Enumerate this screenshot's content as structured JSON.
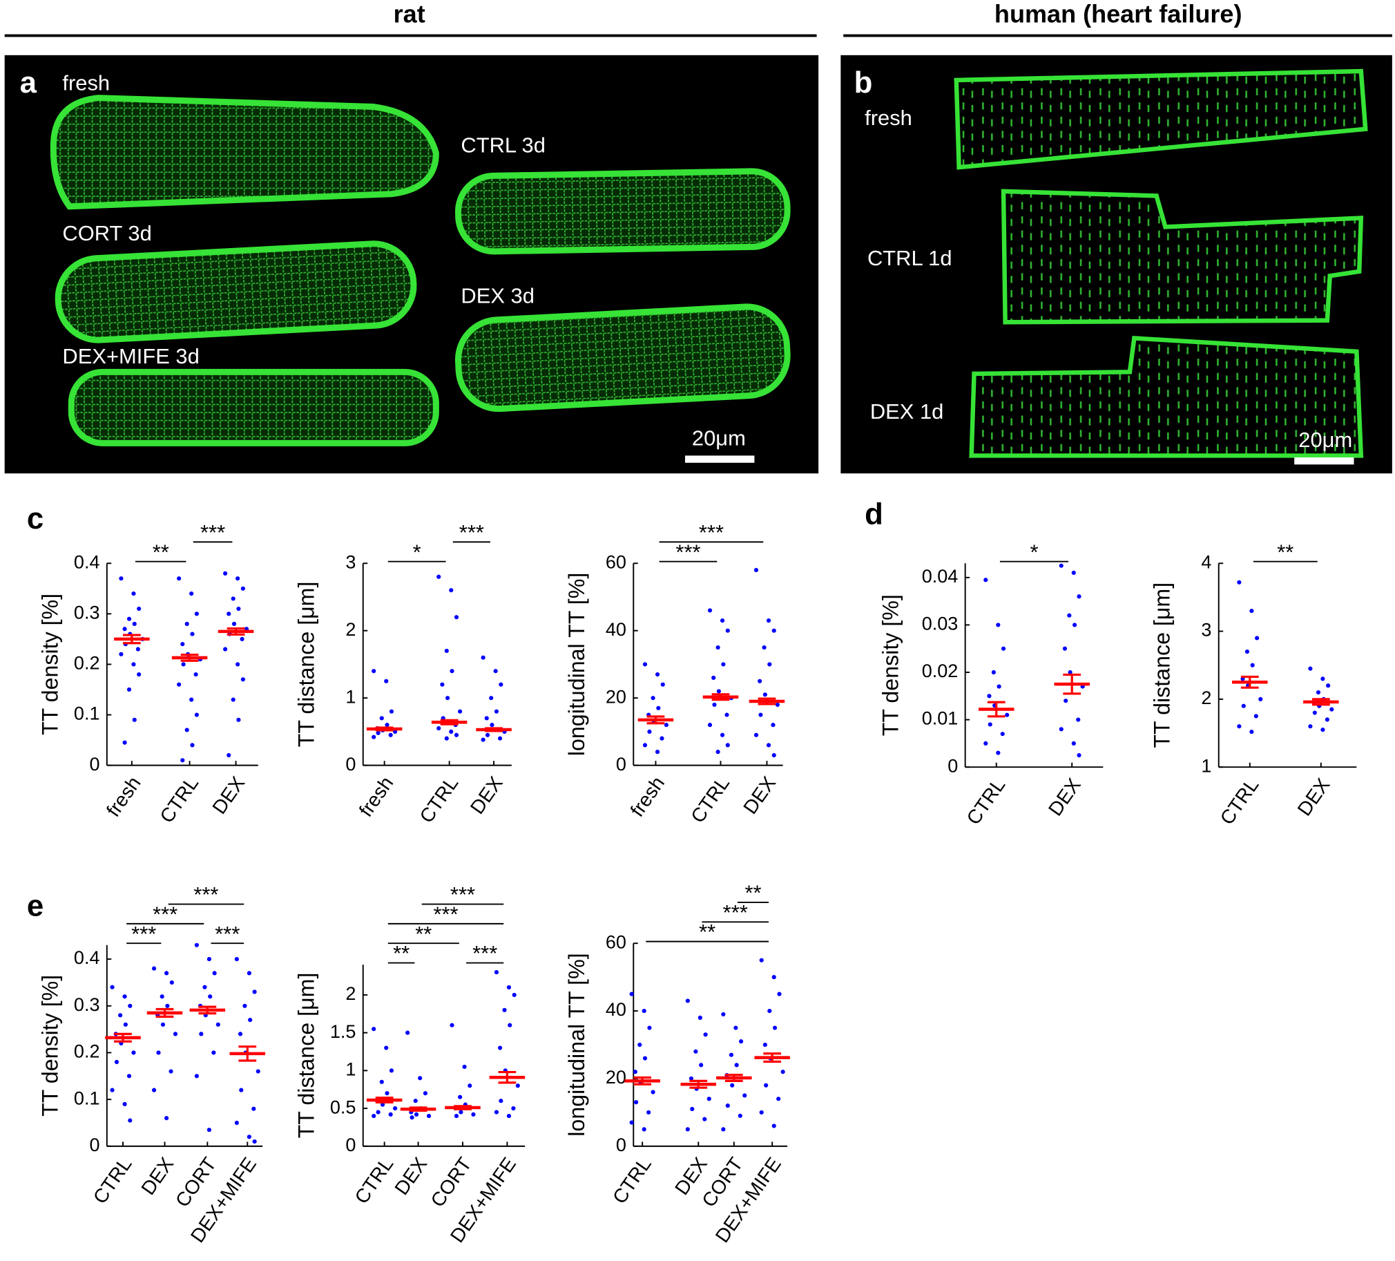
{
  "headers": {
    "rat": "rat",
    "human": "human (heart failure)"
  },
  "images": [
    {
      "label": "a",
      "annotations": [
        "fresh",
        "CTRL 3d",
        "CORT 3d",
        "DEX 3d",
        "DEX+MIFE 3d"
      ],
      "scale_bar": "20μm"
    },
    {
      "label": "b",
      "annotations": [
        "fresh",
        "CTRL 1d",
        "DEX 1d"
      ],
      "scale_bar": "20μm"
    }
  ],
  "figure_labels": [
    "c",
    "d",
    "e"
  ],
  "chart_data": [
    {
      "type": "strip",
      "ylabel": "TT density [%]",
      "categories": [
        "fresh",
        "CTRL",
        "DEX"
      ],
      "ylim": [
        0,
        0.4
      ],
      "yticks": [
        0,
        0.1,
        0.2,
        0.3,
        0.4
      ],
      "dot_color": "#0000ff",
      "mean_color": "#ff0000",
      "series": [
        {
          "values": [
            0.37,
            0.34,
            0.31,
            0.29,
            0.28,
            0.27,
            0.26,
            0.25,
            0.24,
            0.23,
            0.22,
            0.2,
            0.18,
            0.15,
            0.09,
            0.045
          ],
          "mean": 0.25,
          "sem": 0.008
        },
        {
          "values": [
            0.37,
            0.34,
            0.3,
            0.28,
            0.26,
            0.24,
            0.22,
            0.21,
            0.2,
            0.18,
            0.16,
            0.13,
            0.1,
            0.07,
            0.04,
            0.01
          ],
          "mean": 0.213,
          "sem": 0.006
        },
        {
          "values": [
            0.38,
            0.37,
            0.35,
            0.33,
            0.31,
            0.3,
            0.28,
            0.27,
            0.26,
            0.25,
            0.23,
            0.2,
            0.17,
            0.13,
            0.09,
            0.02
          ],
          "mean": 0.265,
          "sem": 0.006
        }
      ],
      "comparisons": [
        {
          "pair": [
            "fresh",
            "CTRL"
          ],
          "label": "**"
        },
        {
          "pair": [
            "CTRL",
            "DEX"
          ],
          "label": "***"
        }
      ]
    },
    {
      "type": "strip",
      "ylabel": "TT distance [μm]",
      "categories": [
        "fresh",
        "CTRL",
        "DEX"
      ],
      "ylim": [
        0,
        3
      ],
      "yticks": [
        0,
        1,
        2,
        3
      ],
      "dot_color": "#0000ff",
      "mean_color": "#ff0000",
      "series": [
        {
          "values": [
            1.4,
            1.25,
            0.8,
            0.7,
            0.6,
            0.55,
            0.52,
            0.5,
            0.48,
            0.45,
            0.42
          ],
          "mean": 0.54,
          "sem": 0.02
        },
        {
          "values": [
            2.8,
            2.6,
            2.2,
            1.7,
            1.4,
            1.2,
            1.0,
            0.8,
            0.7,
            0.6,
            0.55,
            0.5,
            0.45,
            0.4
          ],
          "mean": 0.64,
          "sem": 0.03
        },
        {
          "values": [
            1.6,
            1.4,
            1.2,
            1.0,
            0.8,
            0.7,
            0.6,
            0.5,
            0.45,
            0.4,
            0.38
          ],
          "mean": 0.53,
          "sem": 0.02
        }
      ],
      "comparisons": [
        {
          "pair": [
            "fresh",
            "CTRL"
          ],
          "label": "*"
        },
        {
          "pair": [
            "CTRL",
            "DEX"
          ],
          "label": "***"
        }
      ]
    },
    {
      "type": "strip",
      "ylabel": "longitudinal TT [%]",
      "categories": [
        "fresh",
        "CTRL",
        "DEX"
      ],
      "ylim": [
        0,
        60
      ],
      "yticks": [
        0,
        20,
        40,
        60
      ],
      "dot_color": "#0000ff",
      "mean_color": "#ff0000",
      "series": [
        {
          "values": [
            30,
            27,
            24,
            20,
            17,
            15,
            13,
            12,
            10,
            8,
            6,
            4
          ],
          "mean": 13.5,
          "sem": 1
        },
        {
          "values": [
            46,
            43,
            40,
            35,
            30,
            26,
            22,
            20,
            18,
            15,
            12,
            9,
            6,
            4
          ],
          "mean": 20.3,
          "sem": 0.8
        },
        {
          "values": [
            58,
            43,
            40,
            35,
            30,
            25,
            21,
            18,
            15,
            12,
            9,
            6,
            3
          ],
          "mean": 19,
          "sem": 0.8
        }
      ],
      "comparisons": [
        {
          "pair": [
            "fresh",
            "CTRL"
          ],
          "label": "***"
        },
        {
          "pair": [
            "fresh",
            "DEX"
          ],
          "label": "***"
        }
      ]
    },
    {
      "type": "strip",
      "ylabel": "TT density [%]",
      "categories": [
        "CTRL",
        "DEX"
      ],
      "ylim": [
        0,
        0.043
      ],
      "yticks": [
        0,
        0.01,
        0.02,
        0.03,
        0.04
      ],
      "dot_color": "#0000ff",
      "mean_color": "#ff0000",
      "series": [
        {
          "values": [
            0.0395,
            0.03,
            0.025,
            0.02,
            0.017,
            0.015,
            0.013,
            0.011,
            0.009,
            0.007,
            0.005,
            0.003
          ],
          "mean": 0.0122,
          "sem": 0.0015
        },
        {
          "values": [
            0.0425,
            0.041,
            0.036,
            0.032,
            0.03,
            0.025,
            0.02,
            0.017,
            0.014,
            0.01,
            0.008,
            0.005,
            0.0025
          ],
          "mean": 0.0175,
          "sem": 0.002
        }
      ],
      "comparisons": [
        {
          "pair": [
            "CTRL",
            "DEX"
          ],
          "label": "*"
        }
      ]
    },
    {
      "type": "strip",
      "ylabel": "TT distance [μm]",
      "categories": [
        "CTRL",
        "DEX"
      ],
      "ylim": [
        1,
        4
      ],
      "yticks": [
        1,
        2,
        3,
        4
      ],
      "dot_color": "#0000ff",
      "mean_color": "#ff0000",
      "series": [
        {
          "values": [
            3.72,
            3.3,
            2.9,
            2.7,
            2.5,
            2.3,
            2.2,
            2.0,
            1.9,
            1.75,
            1.6,
            1.52
          ],
          "mean": 2.25,
          "sem": 0.08
        },
        {
          "values": [
            2.45,
            2.3,
            2.2,
            2.1,
            2.0,
            1.95,
            1.9,
            1.85,
            1.8,
            1.7,
            1.6,
            1.55
          ],
          "mean": 1.96,
          "sem": 0.04
        }
      ],
      "comparisons": [
        {
          "pair": [
            "CTRL",
            "DEX"
          ],
          "label": "**"
        }
      ]
    },
    {
      "type": "strip",
      "ylabel": "TT density [%]",
      "categories": [
        "CTRL",
        "DEX",
        "CORT",
        "DEX+MIFE"
      ],
      "ylim": [
        0,
        0.43
      ],
      "yticks": [
        0,
        0.1,
        0.2,
        0.3,
        0.4
      ],
      "dot_color": "#0000ff",
      "mean_color": "#ff0000",
      "series": [
        {
          "values": [
            0.34,
            0.32,
            0.3,
            0.28,
            0.26,
            0.24,
            0.22,
            0.2,
            0.18,
            0.15,
            0.12,
            0.09,
            0.055
          ],
          "mean": 0.232,
          "sem": 0.008
        },
        {
          "values": [
            0.38,
            0.37,
            0.35,
            0.32,
            0.3,
            0.28,
            0.26,
            0.24,
            0.2,
            0.16,
            0.12,
            0.06
          ],
          "mean": 0.285,
          "sem": 0.008
        },
        {
          "values": [
            0.43,
            0.4,
            0.37,
            0.34,
            0.32,
            0.3,
            0.28,
            0.26,
            0.24,
            0.2,
            0.15,
            0.035
          ],
          "mean": 0.291,
          "sem": 0.007
        },
        {
          "values": [
            0.4,
            0.37,
            0.33,
            0.3,
            0.27,
            0.24,
            0.2,
            0.16,
            0.12,
            0.08,
            0.05,
            0.02,
            0.01
          ],
          "mean": 0.198,
          "sem": 0.015
        }
      ],
      "comparisons": [
        {
          "pair": [
            "CTRL",
            "DEX"
          ],
          "label": "***"
        },
        {
          "pair": [
            "CTRL",
            "CORT"
          ],
          "label": "***"
        },
        {
          "pair": [
            "CORT",
            "DEX+MIFE"
          ],
          "label": "***"
        },
        {
          "pair": [
            "DEX",
            "DEX+MIFE"
          ],
          "label": "***"
        }
      ]
    },
    {
      "type": "strip",
      "ylabel": "TT distance [μm]",
      "categories": [
        "CTRL",
        "DEX",
        "CORT",
        "DEX+MIFE"
      ],
      "ylim": [
        0,
        2.4
      ],
      "yticks": [
        0,
        0.5,
        1,
        1.5,
        2
      ],
      "dot_color": "#0000ff",
      "mean_color": "#ff0000",
      "series": [
        {
          "values": [
            1.55,
            1.3,
            1.0,
            0.85,
            0.7,
            0.6,
            0.55,
            0.5,
            0.45,
            0.42,
            0.4
          ],
          "mean": 0.61,
          "sem": 0.03
        },
        {
          "values": [
            1.5,
            0.9,
            0.7,
            0.6,
            0.5,
            0.45,
            0.42,
            0.4,
            0.38
          ],
          "mean": 0.49,
          "sem": 0.02
        },
        {
          "values": [
            1.6,
            1.05,
            0.8,
            0.65,
            0.55,
            0.5,
            0.45,
            0.42,
            0.4
          ],
          "mean": 0.51,
          "sem": 0.02
        },
        {
          "values": [
            2.3,
            2.1,
            2.0,
            1.8,
            1.6,
            1.3,
            1.0,
            0.8,
            0.6,
            0.5,
            0.45,
            0.4
          ],
          "mean": 0.91,
          "sem": 0.07
        }
      ],
      "comparisons": [
        {
          "pair": [
            "CTRL",
            "DEX"
          ],
          "label": "**"
        },
        {
          "pair": [
            "CTRL",
            "CORT"
          ],
          "label": "**"
        },
        {
          "pair": [
            "CTRL",
            "DEX+MIFE"
          ],
          "label": "***"
        },
        {
          "pair": [
            "DEX",
            "DEX+MIFE"
          ],
          "label": "***"
        },
        {
          "pair": [
            "CORT",
            "DEX+MIFE"
          ],
          "label": "***"
        }
      ]
    },
    {
      "type": "strip",
      "ylabel": "longitudinal TT [%]",
      "categories": [
        "CTRL",
        "DEX",
        "CORT",
        "DEX+MIFE"
      ],
      "ylim": [
        0,
        60
      ],
      "yticks": [
        0,
        20,
        40,
        60
      ],
      "dot_color": "#0000ff",
      "mean_color": "#ff0000",
      "series": [
        {
          "values": [
            45,
            40,
            35,
            30,
            26,
            22,
            19,
            16,
            13,
            10,
            7,
            5
          ],
          "mean": 19.3,
          "sem": 1
        },
        {
          "values": [
            43,
            38,
            33,
            28,
            24,
            20,
            17,
            14,
            11,
            8,
            5
          ],
          "mean": 18.3,
          "sem": 1
        },
        {
          "values": [
            39,
            35,
            31,
            27,
            24,
            21,
            18,
            15,
            12,
            9,
            5
          ],
          "mean": 20.2,
          "sem": 0.9
        },
        {
          "values": [
            55,
            50,
            45,
            40,
            35,
            30,
            26,
            22,
            18,
            14,
            10,
            6
          ],
          "mean": 26.2,
          "sem": 1.2
        }
      ],
      "comparisons": [
        {
          "pair": [
            "CTRL",
            "DEX+MIFE"
          ],
          "label": "**"
        },
        {
          "pair": [
            "DEX",
            "DEX+MIFE"
          ],
          "label": "***"
        },
        {
          "pair": [
            "CORT",
            "DEX+MIFE"
          ],
          "label": "**"
        }
      ]
    }
  ]
}
